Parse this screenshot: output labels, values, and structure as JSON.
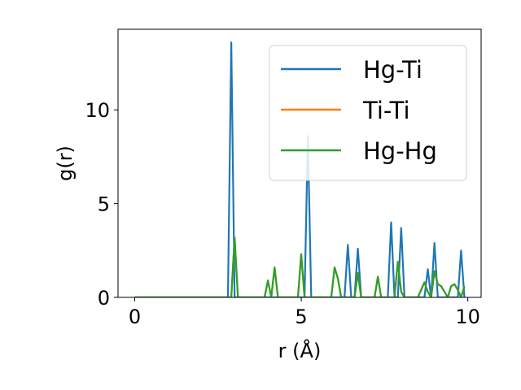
{
  "chart_data": {
    "type": "line",
    "xlabel": "r (Å)",
    "ylabel": "g(r)",
    "xlim": [
      -0.5,
      10.4
    ],
    "ylim": [
      0,
      14.3
    ],
    "xticks": [
      0,
      5,
      10
    ],
    "yticks": [
      0,
      5,
      10
    ],
    "legend": "top-right",
    "grid": false,
    "series": [
      {
        "name": "Hg-Ti",
        "color": "#1f77b4",
        "points": [
          [
            0,
            0
          ],
          [
            2.8,
            0
          ],
          [
            2.9,
            13.6
          ],
          [
            3.0,
            0
          ],
          [
            5.1,
            0
          ],
          [
            5.2,
            8.6
          ],
          [
            5.3,
            0
          ],
          [
            6.3,
            0
          ],
          [
            6.4,
            2.8
          ],
          [
            6.5,
            0
          ],
          [
            6.6,
            0
          ],
          [
            6.7,
            2.6
          ],
          [
            6.8,
            0
          ],
          [
            7.6,
            0
          ],
          [
            7.7,
            4.0
          ],
          [
            7.8,
            0
          ],
          [
            7.9,
            0
          ],
          [
            8.0,
            3.7
          ],
          [
            8.1,
            0
          ],
          [
            8.7,
            0
          ],
          [
            8.8,
            1.5
          ],
          [
            8.9,
            0
          ],
          [
            9.0,
            2.9
          ],
          [
            9.1,
            0
          ],
          [
            9.7,
            0
          ],
          [
            9.8,
            2.5
          ],
          [
            9.9,
            0
          ]
        ]
      },
      {
        "name": "Ti-Ti",
        "color": "#ff7f0e",
        "points": [
          [
            0,
            0
          ],
          [
            2.9,
            0
          ],
          [
            3.0,
            3.2
          ],
          [
            3.1,
            0
          ],
          [
            3.9,
            0
          ],
          [
            4.0,
            0.9
          ],
          [
            4.1,
            0
          ],
          [
            4.2,
            1.6
          ],
          [
            4.3,
            0
          ],
          [
            4.9,
            0
          ],
          [
            5.0,
            2.3
          ],
          [
            5.1,
            0
          ],
          [
            5.9,
            0
          ],
          [
            6.0,
            1.6
          ],
          [
            6.1,
            1.0
          ],
          [
            6.2,
            0
          ],
          [
            6.6,
            0
          ],
          [
            6.7,
            1.3
          ],
          [
            6.8,
            0
          ],
          [
            7.2,
            0
          ],
          [
            7.3,
            1.1
          ],
          [
            7.4,
            0
          ],
          [
            7.8,
            0
          ],
          [
            7.9,
            1.9
          ],
          [
            8.0,
            0.3
          ],
          [
            8.1,
            0
          ],
          [
            8.5,
            0
          ],
          [
            8.7,
            0.8
          ],
          [
            8.8,
            0.3
          ],
          [
            8.9,
            0
          ],
          [
            9.0,
            1.4
          ],
          [
            9.1,
            0.7
          ],
          [
            9.2,
            0.6
          ],
          [
            9.4,
            0
          ],
          [
            9.5,
            0.6
          ],
          [
            9.6,
            0.7
          ],
          [
            9.7,
            0.4
          ],
          [
            9.8,
            0
          ],
          [
            9.9,
            0.6
          ]
        ]
      },
      {
        "name": "Hg-Hg",
        "color": "#2ca02c",
        "points": [
          [
            0,
            0
          ],
          [
            2.9,
            0
          ],
          [
            3.0,
            3.2
          ],
          [
            3.1,
            0
          ],
          [
            3.9,
            0
          ],
          [
            4.0,
            0.9
          ],
          [
            4.1,
            0
          ],
          [
            4.2,
            1.6
          ],
          [
            4.3,
            0
          ],
          [
            4.9,
            0
          ],
          [
            5.0,
            2.3
          ],
          [
            5.1,
            0
          ],
          [
            5.9,
            0
          ],
          [
            6.0,
            1.6
          ],
          [
            6.1,
            1.0
          ],
          [
            6.2,
            0
          ],
          [
            6.6,
            0
          ],
          [
            6.7,
            1.3
          ],
          [
            6.8,
            0
          ],
          [
            7.2,
            0
          ],
          [
            7.3,
            1.1
          ],
          [
            7.4,
            0
          ],
          [
            7.8,
            0
          ],
          [
            7.9,
            1.9
          ],
          [
            8.0,
            0.3
          ],
          [
            8.1,
            0
          ],
          [
            8.5,
            0
          ],
          [
            8.7,
            0.8
          ],
          [
            8.8,
            0.3
          ],
          [
            8.9,
            0
          ],
          [
            9.0,
            1.4
          ],
          [
            9.1,
            0.7
          ],
          [
            9.2,
            0.6
          ],
          [
            9.4,
            0
          ],
          [
            9.5,
            0.6
          ],
          [
            9.6,
            0.7
          ],
          [
            9.7,
            0.4
          ],
          [
            9.8,
            0
          ],
          [
            9.9,
            0.6
          ]
        ]
      }
    ]
  }
}
